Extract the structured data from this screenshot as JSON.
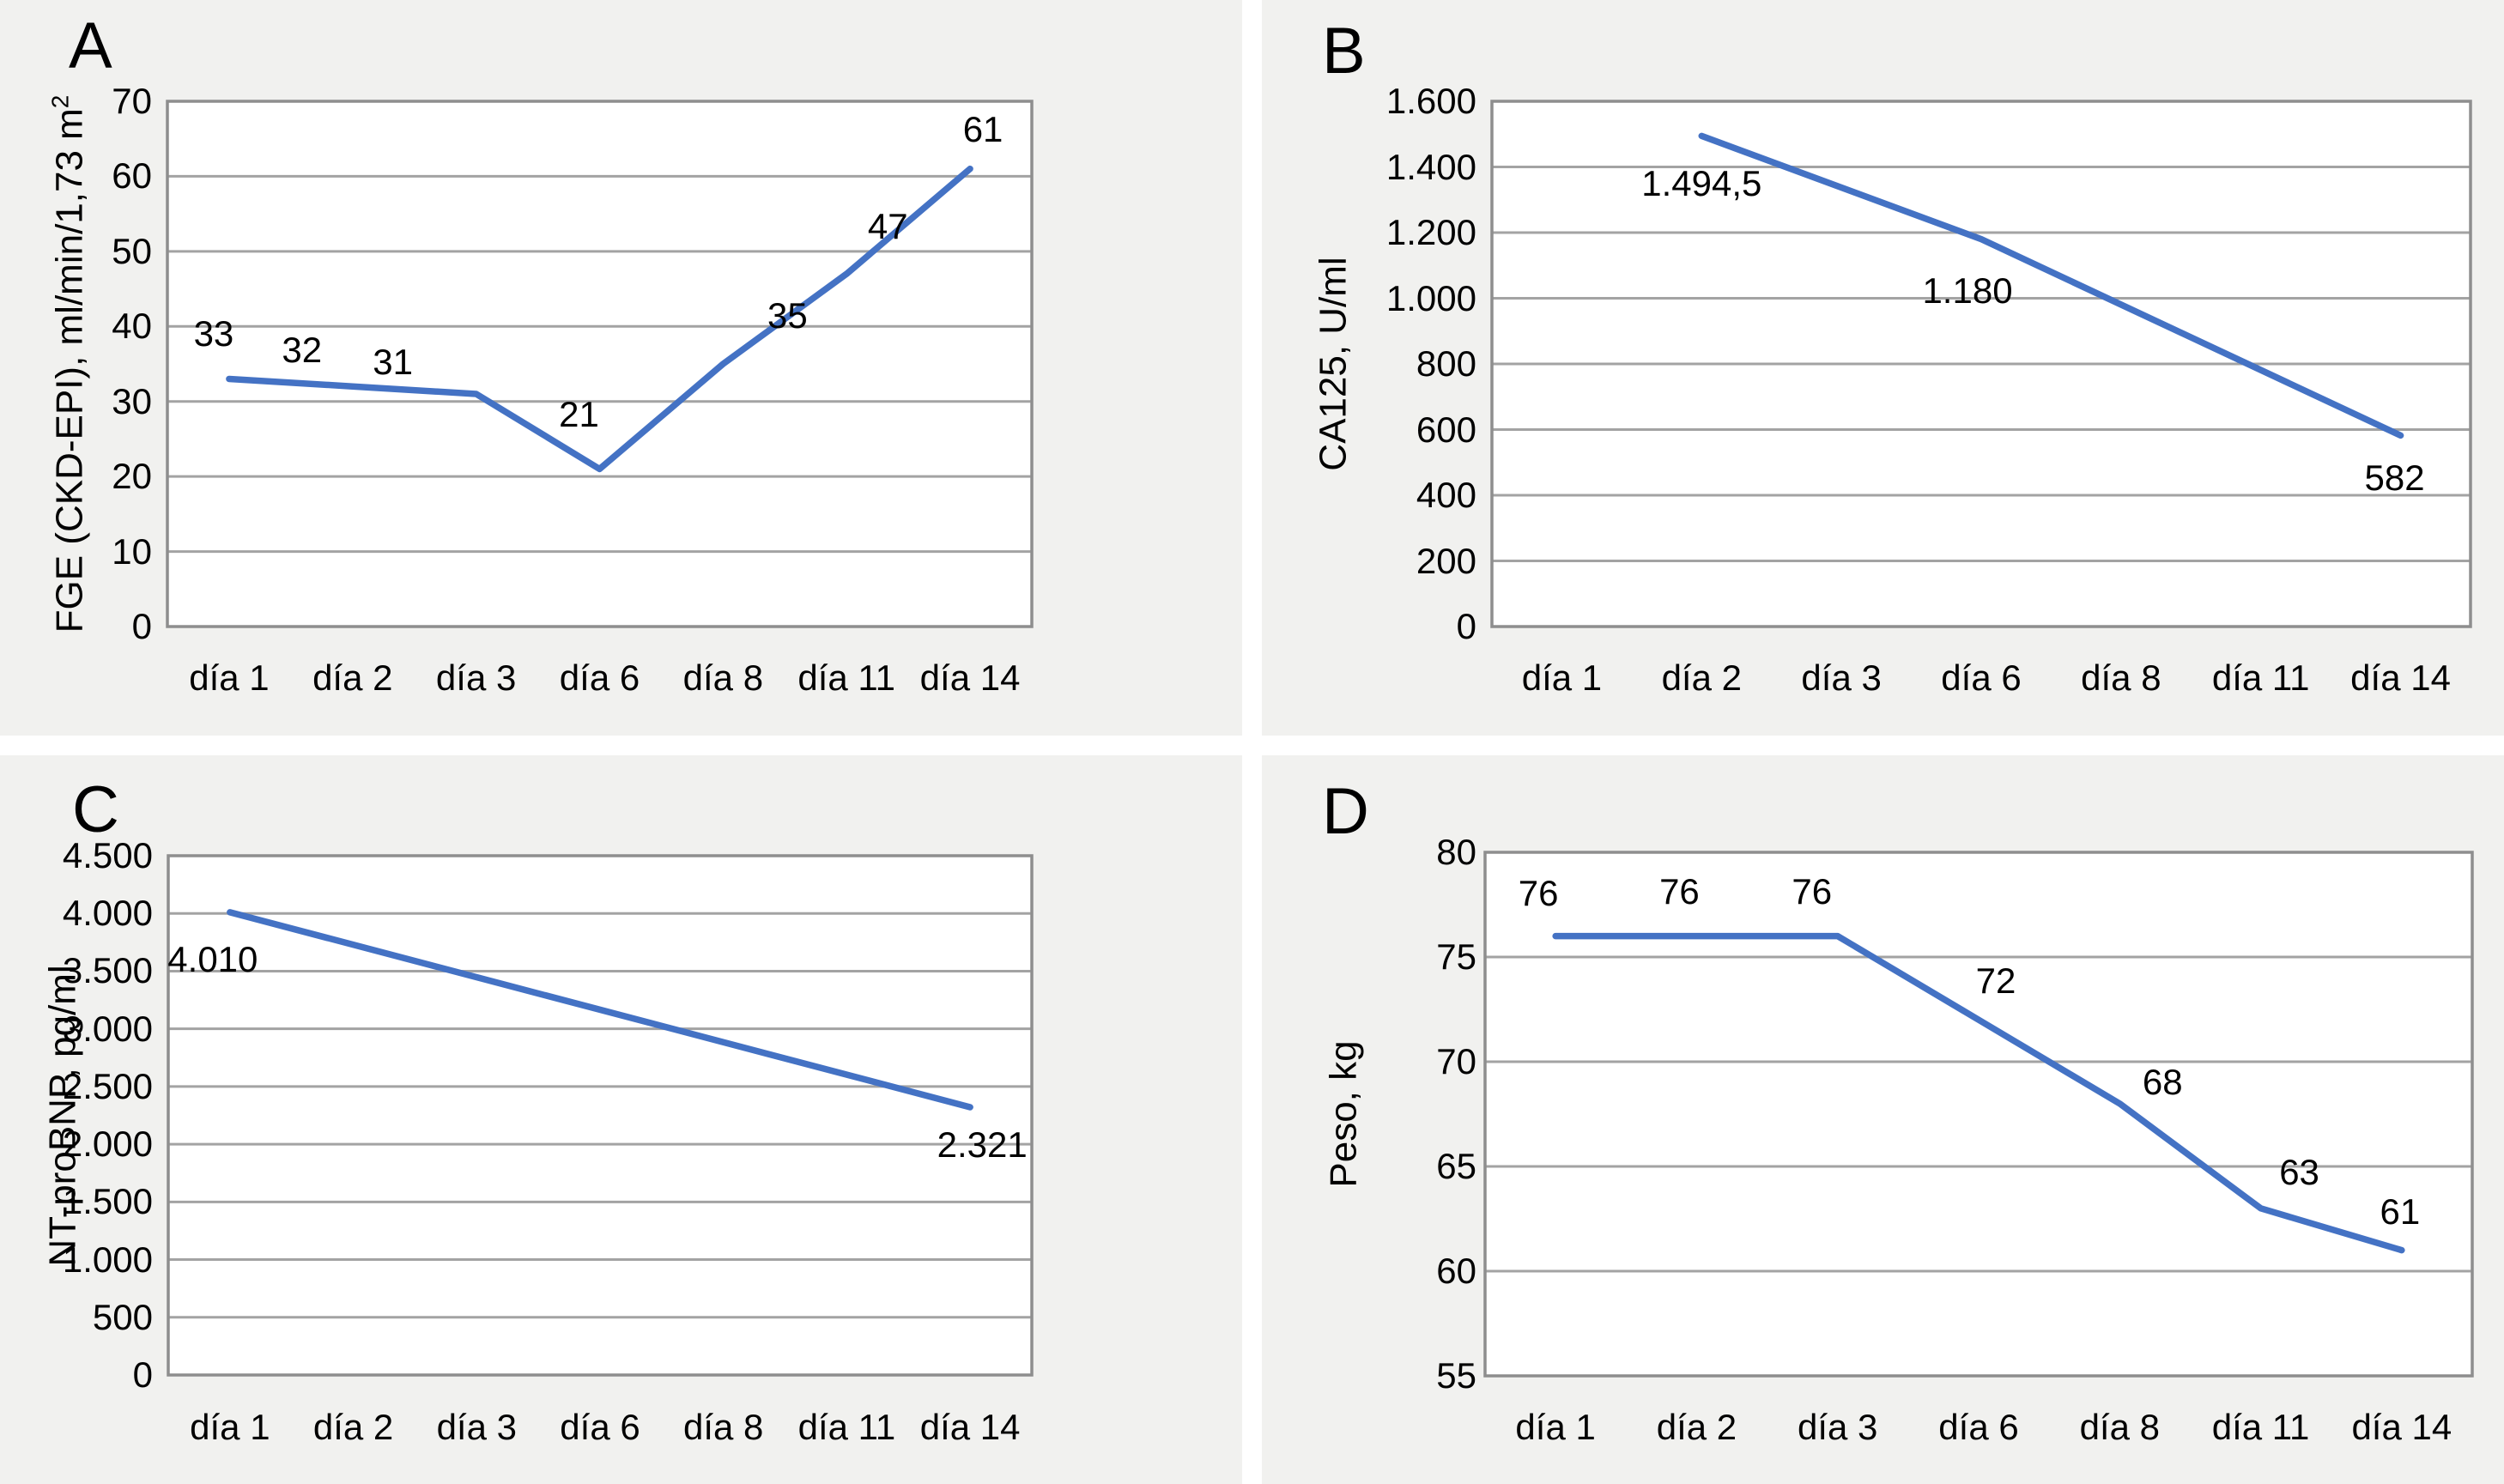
{
  "figure": {
    "panel_labels": [
      "A",
      "B",
      "C",
      "D"
    ]
  },
  "colors": {
    "line": "#4472C4",
    "panel_background": "#f1f1ef",
    "gridline": "#a3a3a3",
    "plot_border": "#8e8e8e",
    "text": "#000000"
  },
  "chart_data": [
    {
      "id": "A",
      "type": "line",
      "panel_label": "A",
      "ylabel_main": "FGE (CKD-EPI), ml/min/1,73 m",
      "ylabel_sup": "2",
      "categories": [
        "día 1",
        "día 2",
        "día 3",
        "día 6",
        "día 8",
        "día 11",
        "día 14"
      ],
      "ylim": [
        0,
        70
      ],
      "ytick_values": [
        70,
        60,
        50,
        40,
        30,
        20,
        10,
        0
      ],
      "ytick_labels": [
        "70",
        "60",
        "50",
        "40",
        "30",
        "20",
        "10",
        "0"
      ],
      "grid": true,
      "legend": false,
      "line_color": "#4472C4",
      "series": [
        {
          "name": "FGE (CKD-EPI)",
          "values": [
            33,
            32,
            31,
            21,
            35,
            47,
            61
          ]
        }
      ],
      "point_labels": [
        {
          "index": 0,
          "text": "33"
        },
        {
          "index": 1,
          "text": "32"
        },
        {
          "index": 2,
          "text": "31"
        },
        {
          "index": 3,
          "text": "21"
        },
        {
          "index": 4,
          "text": "35"
        },
        {
          "index": 5,
          "text": "47"
        },
        {
          "index": 6,
          "text": "61"
        }
      ]
    },
    {
      "id": "B",
      "type": "line",
      "panel_label": "B",
      "ylabel_main": "CA125, U/ml",
      "ylabel_sup": "",
      "categories": [
        "día 1",
        "día 2",
        "día 3",
        "día 6",
        "día 8",
        "día 11",
        "día 14"
      ],
      "ylim": [
        0,
        1600
      ],
      "ytick_values": [
        1600,
        1400,
        1200,
        1000,
        800,
        600,
        400,
        200,
        0
      ],
      "ytick_labels": [
        "1.600",
        "1.400",
        "1.200",
        "1.000",
        "800",
        "600",
        "400",
        "200",
        "0"
      ],
      "grid": true,
      "legend": false,
      "line_color": "#4472C4",
      "series": [
        {
          "name": "CA125",
          "values": [
            null,
            1494.5,
            null,
            1180,
            null,
            null,
            582
          ]
        }
      ],
      "point_labels": [
        {
          "index": 1,
          "text": "1.494,5"
        },
        {
          "index": 3,
          "text": "1.180"
        },
        {
          "index": 6,
          "text": "582"
        }
      ]
    },
    {
      "id": "C",
      "type": "line",
      "panel_label": "C",
      "ylabel_main": "NT-proBNP, pg/ml",
      "ylabel_sup": "",
      "categories": [
        "día 1",
        "día 2",
        "día 3",
        "día 6",
        "día 8",
        "día 11",
        "día 14"
      ],
      "ylim": [
        0,
        4500
      ],
      "ytick_values": [
        4500,
        4000,
        3500,
        3000,
        2500,
        2000,
        1500,
        1000,
        500,
        0
      ],
      "ytick_labels": [
        "4.500",
        "4.000",
        "3.500",
        "3.000",
        "2.500",
        "2.000",
        "1.500",
        "1.000",
        "500",
        "0"
      ],
      "grid": true,
      "legend": false,
      "line_color": "#4472C4",
      "series": [
        {
          "name": "NT-proBNP",
          "values": [
            4010,
            null,
            null,
            null,
            null,
            null,
            2321
          ]
        }
      ],
      "point_labels": [
        {
          "index": 0,
          "text": "4.010"
        },
        {
          "index": 6,
          "text": "2.321"
        }
      ]
    },
    {
      "id": "D",
      "type": "line",
      "panel_label": "D",
      "ylabel_main": "Peso, kg",
      "ylabel_sup": "",
      "categories": [
        "día 1",
        "día 2",
        "día 3",
        "día 6",
        "día 8",
        "día 11",
        "día 14"
      ],
      "ylim": [
        55,
        80
      ],
      "ytick_values": [
        80,
        75,
        70,
        65,
        60,
        55
      ],
      "ytick_labels": [
        "80",
        "75",
        "70",
        "65",
        "60",
        "55"
      ],
      "grid": true,
      "legend": false,
      "line_color": "#4472C4",
      "series": [
        {
          "name": "Peso",
          "values": [
            76,
            76,
            76,
            72,
            68,
            63,
            61
          ]
        }
      ],
      "point_labels": [
        {
          "index": 0,
          "text": "76"
        },
        {
          "index": 1,
          "text": "76"
        },
        {
          "index": 2,
          "text": "76"
        },
        {
          "index": 3,
          "text": "72"
        },
        {
          "index": 4,
          "text": "68"
        },
        {
          "index": 5,
          "text": "63"
        },
        {
          "index": 6,
          "text": "61"
        }
      ]
    }
  ]
}
